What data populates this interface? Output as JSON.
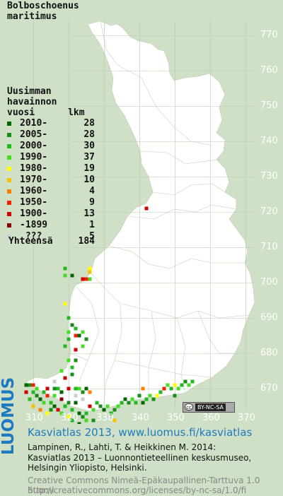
{
  "species": [
    "Bolboschoenus",
    "maritimus"
  ],
  "legend": {
    "heading": [
      "Uusimman",
      "havainnon",
      "vuosi      lkm"
    ],
    "items": [
      {
        "label": "2010-",
        "count": "28",
        "color": "#006400"
      },
      {
        "label": "2005-",
        "count": "28",
        "color": "#1a8a1a"
      },
      {
        "label": "2000-",
        "count": "30",
        "color": "#22b822"
      },
      {
        "label": "1990-",
        "count": "37",
        "color": "#44dd22"
      },
      {
        "label": "1980-",
        "count": "19",
        "color": "#ffff00"
      },
      {
        "label": "1970-",
        "count": "10",
        "color": "#f4c400"
      },
      {
        "label": "1960-",
        "count": "4",
        "color": "#ff7f00"
      },
      {
        "label": "1950-",
        "count": "9",
        "color": "#ee2200"
      },
      {
        "label": "1900-",
        "count": "13",
        "color": "#cc0000"
      },
      {
        "label": "-1899",
        "count": "1",
        "color": "#880000"
      },
      {
        "label": " ???",
        "count": "5",
        "color": "#cccccc"
      }
    ],
    "total_label": "Yhteensä",
    "total_count": "184"
  },
  "grid": {
    "northing_labels": [
      "770",
      "760",
      "750",
      "740",
      "730",
      "720",
      "710",
      "700",
      "690",
      "680",
      "670"
    ],
    "easting_labels": [
      "310",
      "320",
      "330",
      "340",
      "350",
      "360",
      "370"
    ]
  },
  "observations": [
    {
      "e": 342,
      "n": 721,
      "p": 8
    },
    {
      "e": 326,
      "n": 704,
      "p": 4
    },
    {
      "e": 326,
      "n": 703,
      "p": 5
    },
    {
      "e": 326,
      "n": 701,
      "p": 3
    },
    {
      "e": 324,
      "n": 701,
      "p": 8
    },
    {
      "e": 325,
      "n": 701,
      "p": 7
    },
    {
      "e": 319,
      "n": 704,
      "p": 2
    },
    {
      "e": 319,
      "n": 702,
      "p": 3
    },
    {
      "e": 321,
      "n": 702,
      "p": 0
    },
    {
      "e": 319,
      "n": 694,
      "p": 4
    },
    {
      "e": 320,
      "n": 690,
      "p": 2
    },
    {
      "e": 320,
      "n": 686,
      "p": 3
    },
    {
      "e": 321,
      "n": 688,
      "p": 1
    },
    {
      "e": 320,
      "n": 684,
      "p": 2
    },
    {
      "e": 322,
      "n": 685,
      "p": 7
    },
    {
      "e": 323,
      "n": 685,
      "p": 0
    },
    {
      "e": 324,
      "n": 686,
      "p": 3
    },
    {
      "e": 322,
      "n": 687,
      "p": 2
    },
    {
      "e": 325,
      "n": 684,
      "p": 1
    },
    {
      "e": 319,
      "n": 682,
      "p": 2
    },
    {
      "e": 322,
      "n": 681,
      "p": 8
    },
    {
      "e": 324,
      "n": 682,
      "p": 3
    },
    {
      "e": 320,
      "n": 678,
      "p": 3
    },
    {
      "e": 322,
      "n": 678,
      "p": 1
    },
    {
      "e": 321,
      "n": 676,
      "p": 2
    },
    {
      "e": 318,
      "n": 675,
      "p": 3
    },
    {
      "e": 321,
      "n": 674,
      "p": 1
    },
    {
      "e": 319,
      "n": 673,
      "p": 8
    },
    {
      "e": 316,
      "n": 670,
      "p": 1
    },
    {
      "e": 317,
      "n": 670,
      "p": 2
    },
    {
      "e": 316,
      "n": 668,
      "p": 3
    },
    {
      "e": 318,
      "n": 669,
      "p": 0
    },
    {
      "e": 320,
      "n": 670,
      "p": 8
    },
    {
      "e": 322,
      "n": 670,
      "p": 2
    },
    {
      "e": 323,
      "n": 670,
      "p": 3
    },
    {
      "e": 324,
      "n": 669,
      "p": 1
    },
    {
      "e": 325,
      "n": 670,
      "p": 0
    },
    {
      "e": 326,
      "n": 669,
      "p": 6
    },
    {
      "e": 308,
      "n": 671,
      "p": 0
    },
    {
      "e": 309,
      "n": 671,
      "p": 1
    },
    {
      "e": 310,
      "n": 671,
      "p": 7
    },
    {
      "e": 308,
      "n": 669,
      "p": 8
    },
    {
      "e": 310,
      "n": 669,
      "p": 2
    },
    {
      "e": 311,
      "n": 670,
      "p": 3
    },
    {
      "e": 309,
      "n": 667,
      "p": 2
    },
    {
      "e": 311,
      "n": 668,
      "p": 1
    },
    {
      "e": 312,
      "n": 667,
      "p": 0
    },
    {
      "e": 313,
      "n": 669,
      "p": 2
    },
    {
      "e": 314,
      "n": 670,
      "p": 8
    },
    {
      "e": 313,
      "n": 666,
      "p": 3
    },
    {
      "e": 314,
      "n": 668,
      "p": 7
    },
    {
      "e": 315,
      "n": 666,
      "p": 2
    },
    {
      "e": 315,
      "n": 664,
      "p": 1
    },
    {
      "e": 314,
      "n": 663,
      "p": 4
    },
    {
      "e": 316,
      "n": 665,
      "p": 0
    },
    {
      "e": 317,
      "n": 664,
      "p": 8
    },
    {
      "e": 318,
      "n": 663,
      "p": 3
    },
    {
      "e": 319,
      "n": 665,
      "p": 2
    },
    {
      "e": 320,
      "n": 666,
      "p": 1
    },
    {
      "e": 321,
      "n": 664,
      "p": 2
    },
    {
      "e": 322,
      "n": 666,
      "p": 0
    },
    {
      "e": 320,
      "n": 662,
      "p": 4
    },
    {
      "e": 323,
      "n": 663,
      "p": 0
    },
    {
      "e": 324,
      "n": 662,
      "p": 1
    },
    {
      "e": 325,
      "n": 663,
      "p": 2
    },
    {
      "e": 326,
      "n": 665,
      "p": 8
    },
    {
      "e": 327,
      "n": 664,
      "p": 3
    },
    {
      "e": 328,
      "n": 666,
      "p": 2
    },
    {
      "e": 329,
      "n": 665,
      "p": 1
    },
    {
      "e": 330,
      "n": 664,
      "p": 0
    },
    {
      "e": 331,
      "n": 665,
      "p": 3
    },
    {
      "e": 332,
      "n": 663,
      "p": 2
    },
    {
      "e": 333,
      "n": 664,
      "p": 1
    },
    {
      "e": 334,
      "n": 665,
      "p": 3
    },
    {
      "e": 335,
      "n": 666,
      "p": 2
    },
    {
      "e": 336,
      "n": 667,
      "p": 0
    },
    {
      "e": 337,
      "n": 666,
      "p": 1
    },
    {
      "e": 338,
      "n": 667,
      "p": 3
    },
    {
      "e": 339,
      "n": 666,
      "p": 2
    },
    {
      "e": 340,
      "n": 668,
      "p": 1
    },
    {
      "e": 341,
      "n": 666,
      "p": 0
    },
    {
      "e": 342,
      "n": 667,
      "p": 2
    },
    {
      "e": 343,
      "n": 668,
      "p": 3
    },
    {
      "e": 344,
      "n": 667,
      "p": 1
    },
    {
      "e": 345,
      "n": 668,
      "p": 4
    },
    {
      "e": 346,
      "n": 669,
      "p": 2
    },
    {
      "e": 347,
      "n": 670,
      "p": 7
    },
    {
      "e": 348,
      "n": 671,
      "p": 3
    },
    {
      "e": 349,
      "n": 670,
      "p": 2
    },
    {
      "e": 350,
      "n": 671,
      "p": 4
    },
    {
      "e": 351,
      "n": 670,
      "p": 3
    },
    {
      "e": 352,
      "n": 671,
      "p": 2
    },
    {
      "e": 353,
      "n": 672,
      "p": 1
    },
    {
      "e": 354,
      "n": 671,
      "p": 3
    },
    {
      "e": 355,
      "n": 672,
      "p": 2
    },
    {
      "e": 350,
      "n": 668,
      "p": 1
    },
    {
      "e": 341,
      "n": 670,
      "p": 6
    },
    {
      "e": 331,
      "n": 662,
      "p": 10
    },
    {
      "e": 333,
      "n": 661,
      "p": 5
    },
    {
      "e": 327,
      "n": 661,
      "p": 1
    },
    {
      "e": 321,
      "n": 661,
      "p": 2
    },
    {
      "e": 323,
      "n": 660,
      "p": 0
    },
    {
      "e": 325,
      "n": 661,
      "p": 3
    },
    {
      "e": 310,
      "n": 665,
      "p": 5
    },
    {
      "e": 312,
      "n": 664,
      "p": 6
    },
    {
      "e": 318,
      "n": 667,
      "p": 9
    },
    {
      "e": 322,
      "n": 668,
      "p": 10
    },
    {
      "e": 316,
      "n": 672,
      "p": 10
    },
    {
      "e": 324,
      "n": 667,
      "p": 10
    }
  ],
  "cc_badge": {
    "icon": "cc",
    "text": "BY-NC-SA"
  },
  "brand": "LUOMUS",
  "credit": {
    "title": "Kasviatlas 2013, www.luomus.fi/kasviatlas",
    "lines": [
      "Lampinen, R., Lahti, T. & Heikkinen M. 2014:",
      "Kasviatlas 2013 – Luonnontieteellinen keskusmuseo,",
      "Helsingin Yliopisto, Helsinki."
    ],
    "license": [
      "Creative Commons Nimeä-Epäkaupallinen-Tarttuva 1.0 Suomi",
      "http://creativecommons.org/licenses/by-nc-sa/1.0/fi"
    ]
  }
}
